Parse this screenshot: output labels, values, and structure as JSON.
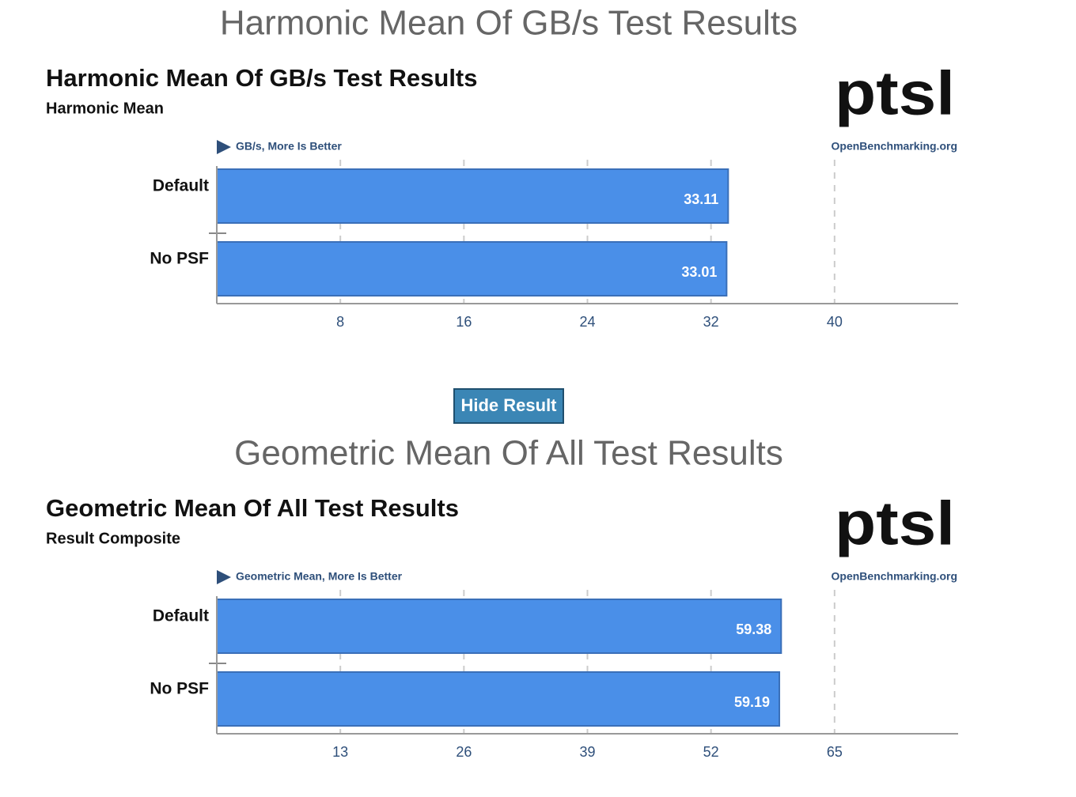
{
  "headings": [
    "Harmonic Mean Of GB/s Test Results",
    "Geometric Mean Of All Test Results"
  ],
  "button": "Hide Result",
  "chart_data": [
    {
      "type": "bar",
      "orientation": "horizontal",
      "title": "Harmonic Mean Of GB/s Test Results",
      "subtitle": "Harmonic Mean",
      "x_label": "GB/s, More Is Better",
      "source": "OpenBenchmarking.org",
      "logo": "ptsl",
      "categories": [
        "Default",
        "No PSF"
      ],
      "values": [
        33.11,
        33.01
      ],
      "color": "#4a8fe8",
      "xlim": [
        0,
        48
      ],
      "xticks": [
        8,
        16,
        24,
        32,
        40
      ],
      "grid": true
    },
    {
      "type": "bar",
      "orientation": "horizontal",
      "title": "Geometric Mean Of All Test Results",
      "subtitle": "Result Composite",
      "x_label": "Geometric Mean, More Is Better",
      "source": "OpenBenchmarking.org",
      "logo": "ptsl",
      "categories": [
        "Default",
        "No PSF"
      ],
      "values": [
        59.38,
        59.19
      ],
      "color": "#4a8fe8",
      "xlim": [
        0,
        78
      ],
      "xticks": [
        13,
        26,
        39,
        52,
        65
      ],
      "grid": true
    }
  ]
}
